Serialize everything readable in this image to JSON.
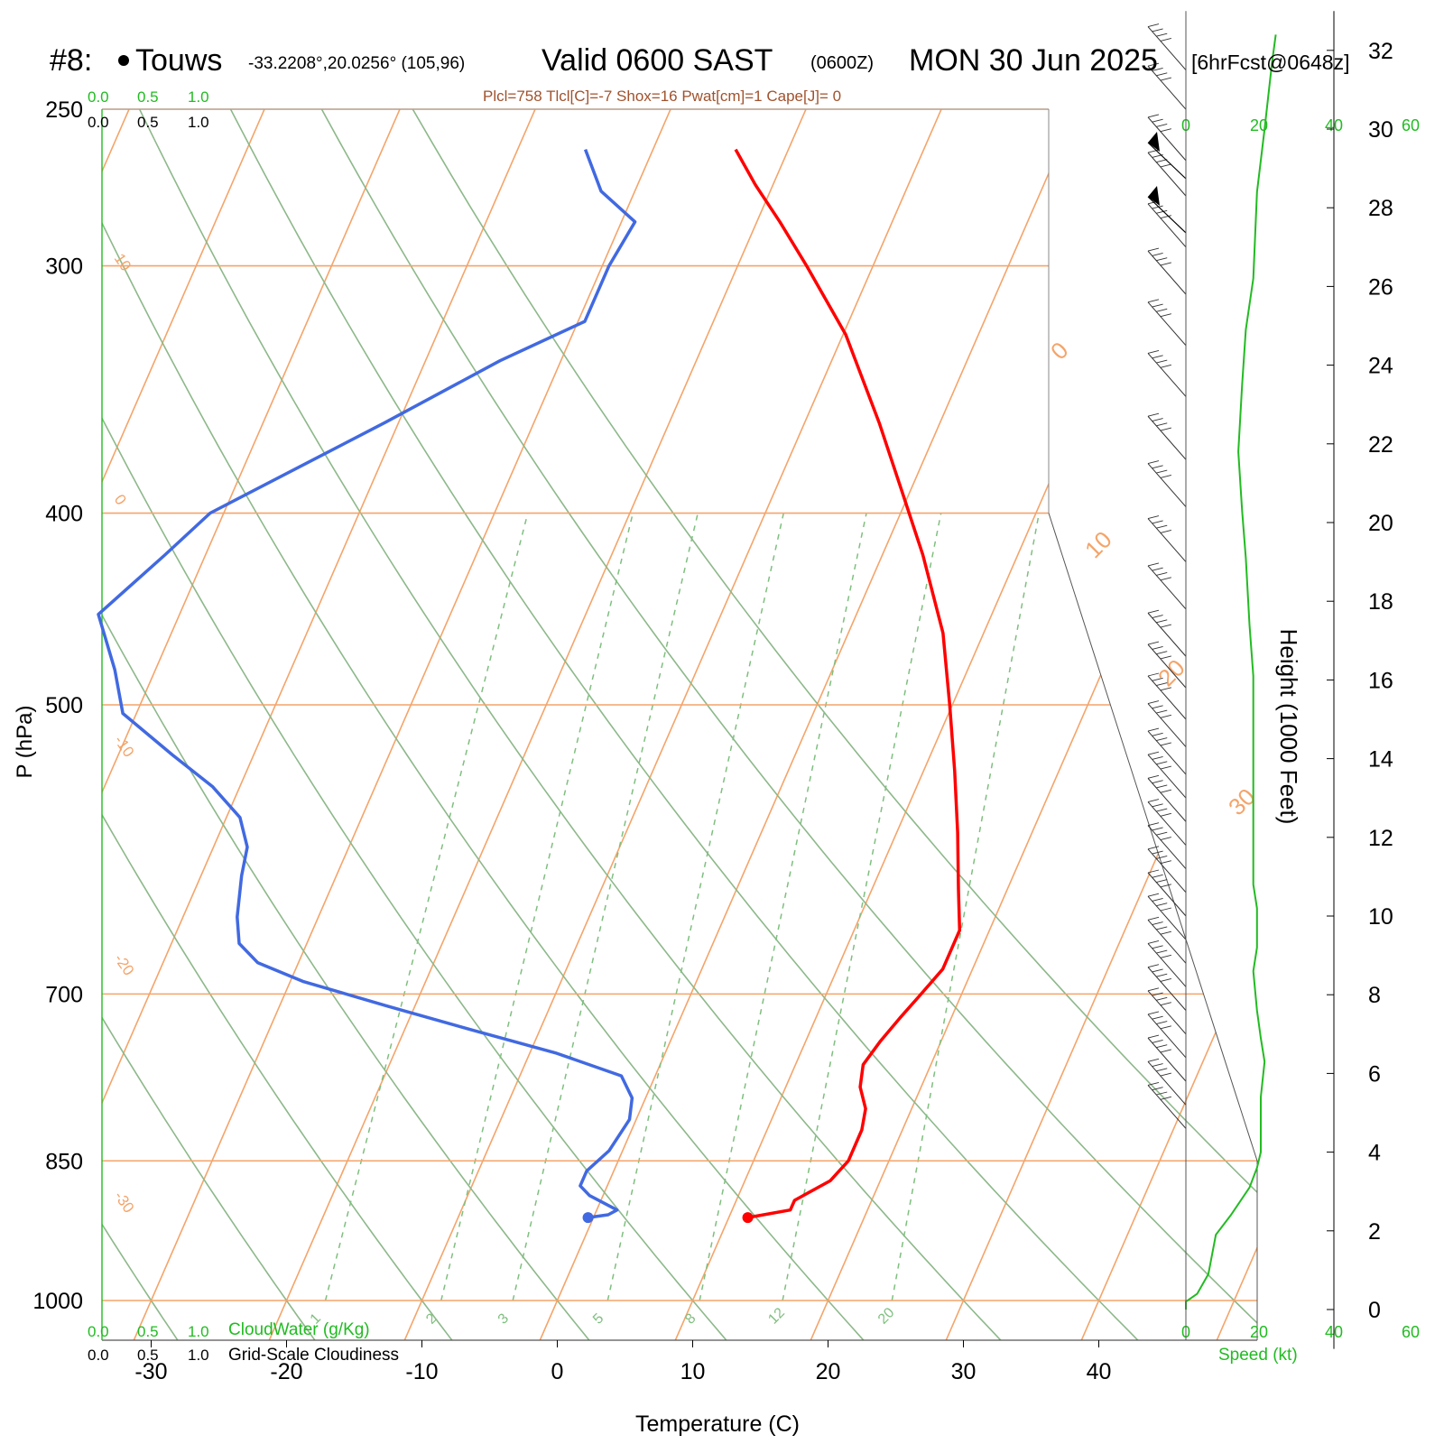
{
  "header": {
    "station_num": "#8:",
    "station_name": "Touws",
    "coords": "-33.2208°,20.0256° (105,96)",
    "valid": "Valid 0600 SAST",
    "zulu": "(0600Z)",
    "date": "MON 30 Jun 2025",
    "fcst": "[6hrFcst@0648z]",
    "indices": "Plcl=758 Tlcl[C]=-7 Shox=16 Pwat[cm]=1 Cape[J]= 0"
  },
  "colors": {
    "temperature": "#ff0000",
    "dewpoint": "#4169e1",
    "isotherm": "#f4a46a",
    "dry_adiabat": "#8db88a",
    "mixing_ratio": "#7fbf7f",
    "speed_line": "#22bb22",
    "green_text": "#22bb22",
    "indices_text": "#a0522d"
  },
  "cloud_scale": {
    "green_top": [
      "0.0",
      "0.5",
      "1.0"
    ],
    "black_top": [
      "0.0",
      "0.5",
      "1.0"
    ],
    "green_bottom": [
      "0.0",
      "0.5",
      "1.0"
    ],
    "black_bottom": [
      "0.0",
      "0.5",
      "1.0"
    ],
    "cloudwater_label": "CloudWater (g/Kg)",
    "cloudiness_label": "Grid-Scale Cloudiness"
  },
  "speed_axis": {
    "ticks": [
      "0",
      "20",
      "40",
      "60"
    ],
    "label": "Speed (kt)"
  },
  "height_axis": {
    "label": "Height (1000 Feet)",
    "ticks": [
      "0",
      "2",
      "4",
      "6",
      "8",
      "10",
      "12",
      "14",
      "16",
      "18",
      "20",
      "22",
      "24",
      "26",
      "28",
      "30",
      "32"
    ]
  },
  "chart_data": {
    "type": "line",
    "title": "Skew-T Log-P sounding",
    "xlabel": "Temperature (C)",
    "ylabel": "P (hPa)",
    "x_ticks": [
      "-30",
      "-20",
      "-10",
      "0",
      "10",
      "20",
      "30",
      "40"
    ],
    "p_ticks": [
      "250",
      "300",
      "400",
      "500",
      "700",
      "850",
      "1000"
    ],
    "isotherm_labels": [
      "10",
      "0",
      "-10",
      "-20",
      "-30",
      "0",
      "10",
      "20",
      "30"
    ],
    "mixing_ratio_labels": [
      "1",
      "2",
      "3",
      "5",
      "8",
      "12",
      "20"
    ],
    "series": [
      {
        "name": "Temperature",
        "points": [
          [
            11.4,
            908
          ],
          [
            14.3,
            900
          ],
          [
            14.3,
            890
          ],
          [
            16.3,
            870
          ],
          [
            17.0,
            850
          ],
          [
            17.0,
            820
          ],
          [
            16.6,
            800
          ],
          [
            15.5,
            780
          ],
          [
            15.0,
            760
          ],
          [
            15.5,
            740
          ],
          [
            16.2,
            720
          ],
          [
            17.0,
            700
          ],
          [
            17.8,
            680
          ],
          [
            17.8,
            650
          ],
          [
            16.4,
            620
          ],
          [
            14.5,
            580
          ],
          [
            12.3,
            540
          ],
          [
            9.8,
            500
          ],
          [
            7.0,
            460
          ],
          [
            3.0,
            420
          ],
          [
            -0.6,
            390
          ],
          [
            -4.5,
            360
          ],
          [
            -9.8,
            325
          ],
          [
            -14.9,
            300
          ],
          [
            -18.3,
            285
          ],
          [
            -21.3,
            273
          ],
          [
            -23.9,
            262
          ]
        ],
        "surface_marker": true
      },
      {
        "name": "Dewpoint",
        "points": [
          [
            -0.4,
            908
          ],
          [
            1.0,
            905
          ],
          [
            1.5,
            900
          ],
          [
            -1.0,
            885
          ],
          [
            -2.0,
            875
          ],
          [
            -2.0,
            860
          ],
          [
            -1.0,
            840
          ],
          [
            -0.5,
            810
          ],
          [
            -1.0,
            790
          ],
          [
            -2.5,
            770
          ],
          [
            -8.0,
            750
          ],
          [
            -15.0,
            730
          ],
          [
            -22.0,
            710
          ],
          [
            -29.0,
            690
          ],
          [
            -33.0,
            675
          ],
          [
            -35.0,
            660
          ],
          [
            -36.0,
            640
          ],
          [
            -37.0,
            610
          ],
          [
            -37.5,
            590
          ],
          [
            -39.0,
            570
          ],
          [
            -42.0,
            550
          ],
          [
            -46.0,
            530
          ],
          [
            -51.0,
            505
          ],
          [
            -53.0,
            480
          ],
          [
            -56.0,
            450
          ],
          [
            -53.0,
            420
          ],
          [
            -51.0,
            400
          ],
          [
            -41.0,
            360
          ],
          [
            -34.5,
            335
          ],
          [
            -29.5,
            320
          ],
          [
            -29.5,
            300
          ],
          [
            -29.0,
            285
          ],
          [
            -32.5,
            275
          ],
          [
            -35.0,
            262
          ]
        ],
        "surface_marker": true
      }
    ],
    "isotherms_c": [
      -140,
      -130,
      -120,
      -110,
      -100,
      -90,
      -80,
      -70,
      -60,
      -50,
      -40,
      -30,
      -20,
      -10,
      0,
      10,
      20,
      30,
      40,
      50
    ],
    "isobars_hpa": [
      250,
      300,
      400,
      500,
      700,
      850,
      1000
    ],
    "dry_adiabats_c": [
      -40,
      -30,
      -20,
      -10,
      0,
      10,
      20,
      30,
      40,
      50,
      60
    ],
    "mixing_ratios_gkg": [
      1,
      2,
      3,
      5,
      8,
      12,
      20
    ],
    "wind_speed_profile_kt": [
      [
        0,
        0
      ],
      [
        0,
        0.2
      ],
      [
        3,
        0.4
      ],
      [
        6,
        0.9
      ],
      [
        8,
        1.9
      ],
      [
        12,
        2.4
      ],
      [
        17,
        3.1
      ],
      [
        19,
        3.6
      ],
      [
        20,
        4.0
      ],
      [
        20,
        5.4
      ],
      [
        21,
        6.3
      ],
      [
        20,
        6.9
      ],
      [
        19,
        7.6
      ],
      [
        18,
        8.6
      ],
      [
        19,
        9.2
      ],
      [
        19,
        10.2
      ],
      [
        18,
        10.8
      ],
      [
        18,
        12.4
      ],
      [
        18,
        14.8
      ],
      [
        18,
        16.1
      ],
      [
        17,
        17.4
      ],
      [
        16,
        19.1
      ],
      [
        15,
        20.3
      ],
      [
        14,
        21.8
      ],
      [
        15,
        23.5
      ],
      [
        16,
        24.9
      ],
      [
        18,
        26.2
      ],
      [
        19,
        28.4
      ],
      [
        21,
        30.0
      ],
      [
        23,
        31.7
      ],
      [
        24,
        32.4
      ]
    ],
    "wind_barb_heights_kft": [
      31.5,
      30.5,
      29.2,
      28.3,
      27.0,
      25.8,
      24.5,
      23.2,
      21.6,
      20.4,
      19.0,
      17.8,
      16.6,
      15.8,
      15.0,
      14.3,
      13.6,
      13.0,
      12.4,
      11.8,
      11.2,
      10.6,
      10.0,
      9.4,
      8.8,
      8.2,
      7.6,
      7.0,
      6.4,
      5.8,
      5.2,
      4.6
    ],
    "axes": {
      "x_range_c": [
        -33,
        33
      ],
      "p_range_hpa": [
        1050,
        250
      ],
      "log_pressure": true,
      "height_range_kft": [
        0,
        33
      ],
      "speed_range_kt": [
        0,
        60
      ]
    }
  }
}
